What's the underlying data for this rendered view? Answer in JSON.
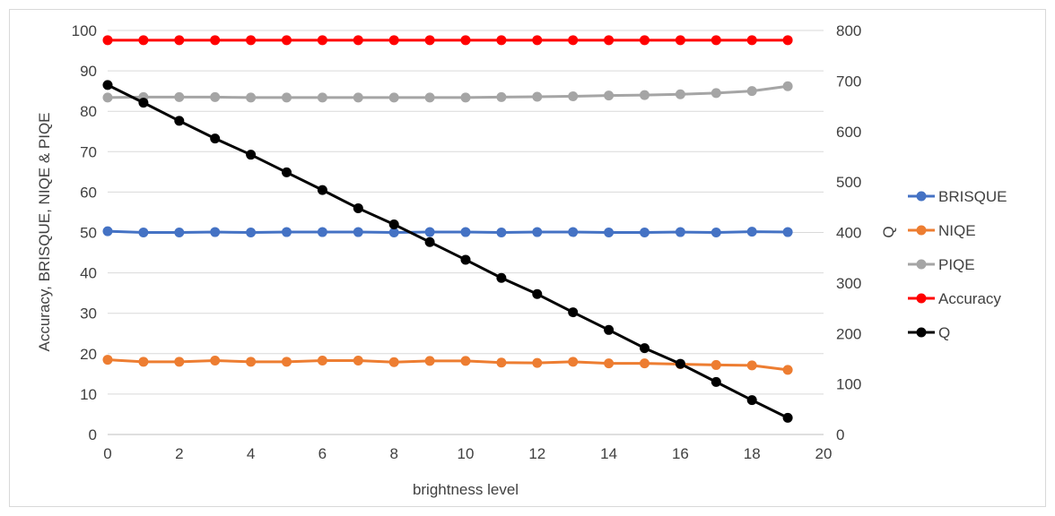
{
  "chart_data": {
    "type": "line",
    "title": "",
    "xlabel": "brightness level",
    "ylabel": "Accuracy, BRISQUE, NIQE & PIQE",
    "y2label": "Q",
    "xlim": [
      0,
      20
    ],
    "ylim": [
      0,
      100
    ],
    "y2lim": [
      0,
      800
    ],
    "xticks": [
      0,
      2,
      4,
      6,
      8,
      10,
      12,
      14,
      16,
      18,
      20
    ],
    "yticks": [
      0,
      10,
      20,
      30,
      40,
      50,
      60,
      70,
      80,
      90,
      100
    ],
    "y2ticks": [
      0,
      100,
      200,
      300,
      400,
      500,
      600,
      700,
      800
    ],
    "grid": true,
    "legend_position": "right",
    "x": [
      0,
      1,
      2,
      3,
      4,
      5,
      6,
      7,
      8,
      9,
      10,
      11,
      12,
      13,
      14,
      15,
      16,
      17,
      18,
      19
    ],
    "series": [
      {
        "name": "BRISQUE",
        "axis": "left",
        "color": "#4472c4",
        "values": [
          50.3,
          50.0,
          50.0,
          50.1,
          50.0,
          50.1,
          50.1,
          50.1,
          50.0,
          50.1,
          50.1,
          50.0,
          50.1,
          50.1,
          50.0,
          50.0,
          50.1,
          50.0,
          50.2,
          50.1
        ]
      },
      {
        "name": "NIQE",
        "axis": "left",
        "color": "#ed7d31",
        "values": [
          18.5,
          18.0,
          18.0,
          18.3,
          18.0,
          18.0,
          18.3,
          18.3,
          17.9,
          18.2,
          18.2,
          17.8,
          17.7,
          18.0,
          17.6,
          17.6,
          17.4,
          17.2,
          17.1,
          16.0
        ]
      },
      {
        "name": "PIQE",
        "axis": "left",
        "color": "#a5a5a5",
        "values": [
          83.4,
          83.5,
          83.5,
          83.5,
          83.4,
          83.4,
          83.4,
          83.4,
          83.4,
          83.4,
          83.4,
          83.5,
          83.6,
          83.7,
          83.9,
          84.0,
          84.2,
          84.5,
          85.0,
          86.2
        ]
      },
      {
        "name": "Accuracy",
        "axis": "left",
        "color": "#ff0000",
        "values": [
          97.6,
          97.6,
          97.6,
          97.6,
          97.6,
          97.6,
          97.6,
          97.6,
          97.6,
          97.6,
          97.6,
          97.6,
          97.6,
          97.6,
          97.6,
          97.6,
          97.6,
          97.6,
          97.6,
          97.6
        ]
      },
      {
        "name": "Q",
        "axis": "right",
        "color": "#000000",
        "values": [
          692,
          657,
          621,
          586,
          554,
          519,
          484,
          448,
          416,
          381,
          346,
          310,
          278,
          242,
          207,
          171,
          140,
          104,
          68,
          33
        ]
      }
    ]
  }
}
